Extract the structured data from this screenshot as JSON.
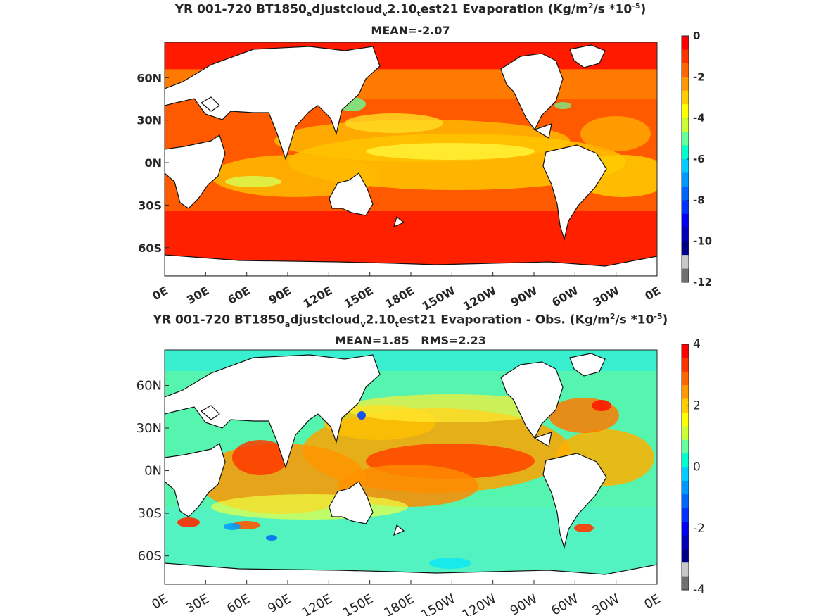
{
  "chart_data": [
    {
      "type": "heatmap",
      "title_parts": {
        "a": "YR 001-720 BT1850",
        "b": "a",
        "c": "djustcloud",
        "d": "v",
        "e": "2.10",
        "f": "t",
        "g": "est21  Evaporation (Kg/m",
        "h": "2",
        "i": "/s *10",
        "j": "-5",
        "k": ")"
      },
      "subtitle": "MEAN=-2.07",
      "y_ticks": [
        "60N",
        "30N",
        "0N",
        "30S",
        "60S"
      ],
      "x_ticks": [
        "0E",
        "30E",
        "60E",
        "90E",
        "120E",
        "150E",
        "180E",
        "150W",
        "120W",
        "90W",
        "60W",
        "30W",
        "0E"
      ],
      "colorbar": {
        "range": [
          -12,
          0
        ],
        "ticks": [
          "0",
          "-2",
          "-4",
          "-6",
          "-8",
          "-10",
          "-12"
        ],
        "colors": [
          "#ff0000",
          "#ff3300",
          "#ff6600",
          "#ff9900",
          "#ffcc00",
          "#ffff00",
          "#ccff33",
          "#66ff99",
          "#00ffcc",
          "#00ccff",
          "#0099ff",
          "#0066ff",
          "#0033ff",
          "#0000ee",
          "#0000bb",
          "#00008b",
          "#c8c8c8",
          "#707070"
        ]
      }
    },
    {
      "type": "heatmap",
      "title_parts": {
        "a": "YR 001-720 BT1850",
        "b": "a",
        "c": "djustcloud",
        "d": "v",
        "e": "2.10",
        "f": "t",
        "g": "est21 Evaporation - Obs. (Kg/m",
        "h": "2",
        "i": "/s *10",
        "j": "-5",
        "k": ")"
      },
      "subtitle": "MEAN=1.85   RMS=2.23",
      "y_ticks": [
        "60N",
        "30N",
        "0N",
        "30S",
        "60S"
      ],
      "x_ticks": [
        "0E",
        "30E",
        "60E",
        "90E",
        "120E",
        "150E",
        "180E",
        "150W",
        "120W",
        "90W",
        "60W",
        "30W",
        "0E"
      ],
      "colorbar": {
        "range": [
          -4,
          4
        ],
        "ticks": [
          "4",
          "2",
          "0",
          "-2",
          "-4"
        ],
        "colors": [
          "#ff0000",
          "#ff3300",
          "#ff6600",
          "#ff9900",
          "#ffcc00",
          "#ffff00",
          "#ccff33",
          "#66ff99",
          "#00ffcc",
          "#00ccff",
          "#0099ff",
          "#0066ff",
          "#0033ff",
          "#0000ee",
          "#0000bb",
          "#00008b",
          "#c8c8c8",
          "#707070"
        ]
      }
    }
  ]
}
